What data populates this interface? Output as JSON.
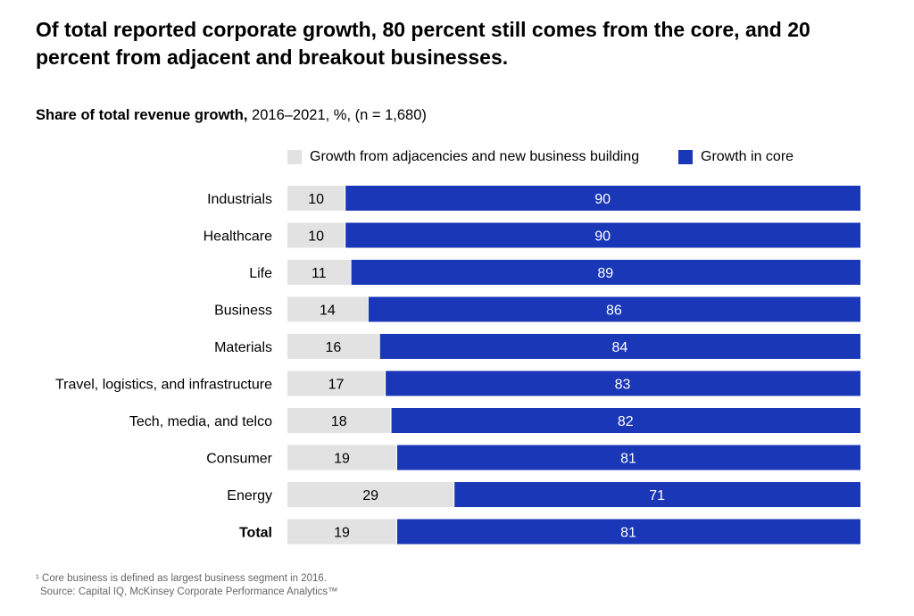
{
  "title": "Of total reported corporate growth, 80 percent still comes from the core, and 20 percent from adjacent and breakout businesses.",
  "subtitle_bold": "Share of total revenue growth,",
  "subtitle_rest": " 2016–2021, %, (n = 1,680)",
  "footnote": "¹ Core business is defined as largest business segment in 2016.",
  "source": "Source: Capital IQ, McKinsey Corporate Performance Analytics™",
  "chart_data": {
    "type": "bar",
    "orientation": "horizontal",
    "stacked": true,
    "categories": [
      "Industrials",
      "Healthcare",
      "Life",
      "Business",
      "Materials",
      "Travel, logistics, and infrastructure",
      "Tech, media, and telco",
      "Consumer",
      "Energy",
      "Total"
    ],
    "series": [
      {
        "name": "Growth from adjacencies and new business building",
        "color": "#e2e2e2",
        "values": [
          10,
          10,
          11,
          14,
          16,
          17,
          18,
          19,
          29,
          19
        ]
      },
      {
        "name": "Growth in core",
        "color": "#1a37b8",
        "values": [
          90,
          90,
          89,
          86,
          84,
          83,
          82,
          81,
          71,
          81
        ]
      }
    ],
    "xlim": [
      0,
      100
    ],
    "legend": "top",
    "grid": false
  }
}
